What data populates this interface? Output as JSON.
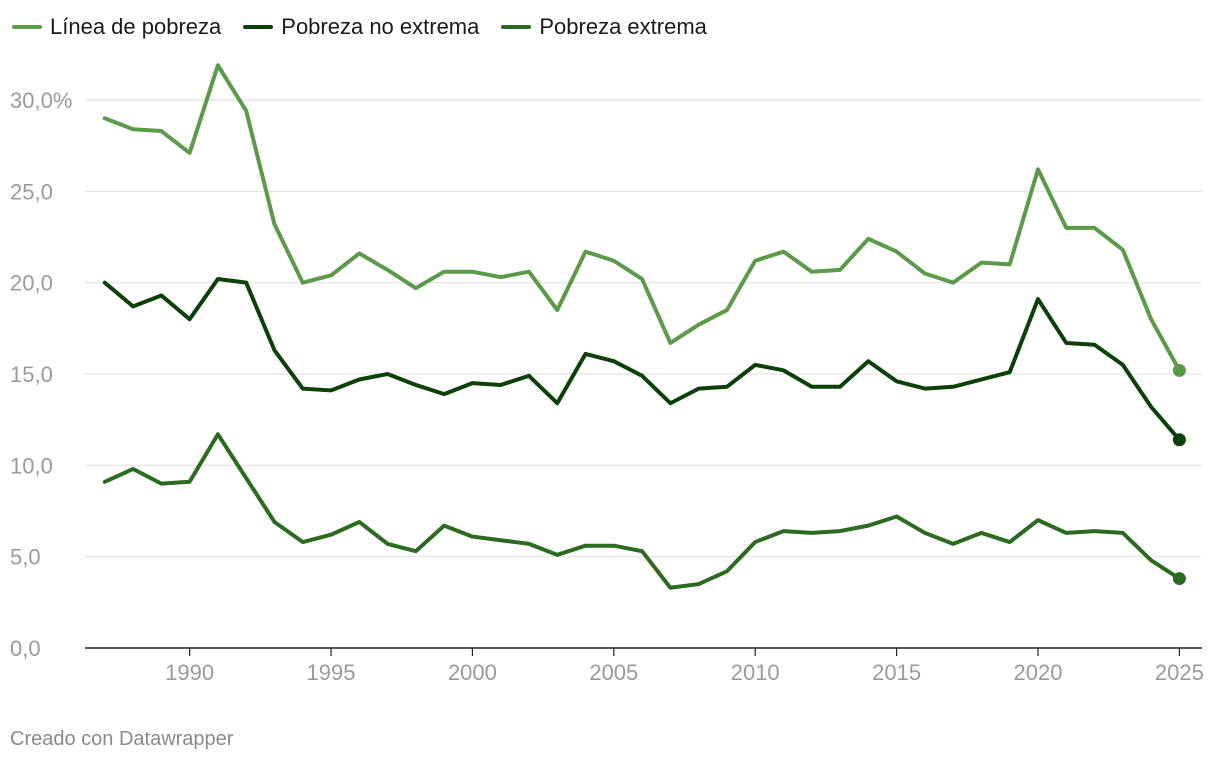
{
  "chart_data": {
    "type": "line",
    "xlim": [
      1986.3,
      2025.8
    ],
    "ylim": [
      0,
      30
    ],
    "yticks": [
      "0,0",
      "5,0",
      "10,0",
      "15,0",
      "20,0",
      "25,0",
      "30,0%"
    ],
    "ytick_values": [
      0,
      5,
      10,
      15,
      20,
      25,
      30
    ],
    "xticks": [
      "1990",
      "1995",
      "2000",
      "2005",
      "2010",
      "2015",
      "2020",
      "2025"
    ],
    "xtick_values": [
      1990,
      1995,
      2000,
      2005,
      2010,
      2015,
      2020,
      2025
    ],
    "x": [
      1987,
      1988,
      1989,
      1990,
      1991,
      1992,
      1993,
      1994,
      1995,
      1996,
      1997,
      1998,
      1999,
      2000,
      2001,
      2002,
      2003,
      2004,
      2005,
      2006,
      2007,
      2008,
      2009,
      2010,
      2011,
      2012,
      2013,
      2014,
      2015,
      2016,
      2017,
      2018,
      2019,
      2020,
      2021,
      2022,
      2023,
      2024,
      2025
    ],
    "series": [
      {
        "name": "Línea de pobreza",
        "color": "#5a9a48",
        "values": [
          29.0,
          28.4,
          28.3,
          27.1,
          31.9,
          29.4,
          23.2,
          20.0,
          20.4,
          21.6,
          20.7,
          19.7,
          20.6,
          20.6,
          20.3,
          20.6,
          18.5,
          21.7,
          21.2,
          20.2,
          16.7,
          17.7,
          18.5,
          21.2,
          21.7,
          20.6,
          20.7,
          22.4,
          21.7,
          20.5,
          20.0,
          21.1,
          21.0,
          26.2,
          23.0,
          23.0,
          21.8,
          18.0,
          15.2
        ]
      },
      {
        "name": "Pobreza no extrema",
        "color": "#0b4008",
        "values": [
          20.0,
          18.7,
          19.3,
          18.0,
          20.2,
          20.0,
          16.3,
          14.2,
          14.1,
          14.7,
          15.0,
          14.4,
          13.9,
          14.5,
          14.4,
          14.9,
          13.4,
          16.1,
          15.7,
          14.9,
          13.4,
          14.2,
          14.3,
          15.5,
          15.2,
          14.3,
          14.3,
          15.7,
          14.6,
          14.2,
          14.3,
          14.7,
          15.1,
          19.1,
          16.7,
          16.6,
          15.5,
          13.2,
          11.4
        ]
      },
      {
        "name": "Pobreza extrema",
        "color": "#2b6a1f",
        "values": [
          9.1,
          9.8,
          9.0,
          9.1,
          11.7,
          9.3,
          6.9,
          5.8,
          6.2,
          6.9,
          5.7,
          5.3,
          6.7,
          6.1,
          5.9,
          5.7,
          5.1,
          5.6,
          5.6,
          5.3,
          3.3,
          3.5,
          4.2,
          5.8,
          6.4,
          6.3,
          6.4,
          6.7,
          7.2,
          6.3,
          5.7,
          6.3,
          5.8,
          7.0,
          6.3,
          6.4,
          6.3,
          4.8,
          3.8
        ]
      }
    ]
  },
  "legend": {
    "items": [
      {
        "label": "Línea de pobreza",
        "color": "#5a9a48"
      },
      {
        "label": "Pobreza no extrema",
        "color": "#0b4008"
      },
      {
        "label": "Pobreza extrema",
        "color": "#2b6a1f"
      }
    ]
  },
  "footer": {
    "credit": "Creado con Datawrapper"
  }
}
